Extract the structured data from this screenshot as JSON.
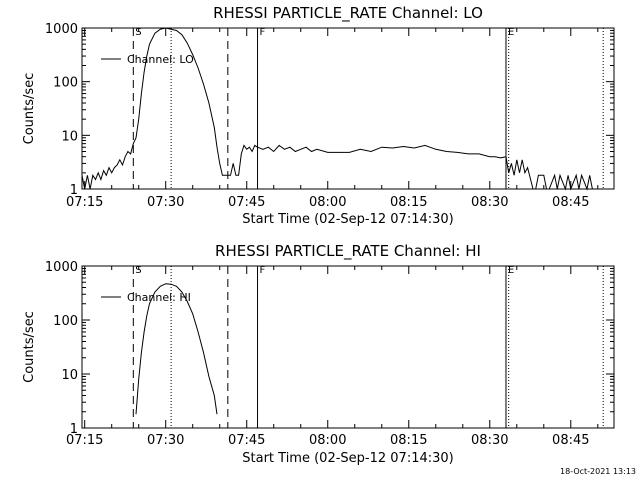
{
  "chart_data": [
    {
      "type": "line",
      "title": "RHESSI PARTICLE_RATE Channel: LO",
      "xlabel": "Start Time (02-Sep-12 07:14:30)",
      "ylabel": "Counts/sec",
      "yscale": "log",
      "xlim": [
        "07:14:30",
        "08:53:00"
      ],
      "ylim": [
        1,
        1000
      ],
      "x_ticks": [
        "07:15",
        "07:30",
        "07:45",
        "08:00",
        "08:15",
        "08:30",
        "08:45"
      ],
      "y_ticks": [
        "1",
        "10",
        "100",
        "1000"
      ],
      "legend": {
        "position": "top-left",
        "entries": [
          "Channel: LO"
        ]
      },
      "markers": [
        {
          "label": "S",
          "time": "07:24:00",
          "style": "dashed"
        },
        {
          "label": "",
          "time": "07:41:30",
          "style": "dashed"
        },
        {
          "label": "",
          "time": "07:31:00",
          "style": "dotted"
        },
        {
          "label": "F",
          "time": "07:47:00",
          "style": "solid"
        },
        {
          "label": "E",
          "time": "08:33:00",
          "style": "solid"
        },
        {
          "label": "",
          "time": "08:33:30",
          "style": "dotted"
        },
        {
          "label": "",
          "time": "08:51:00",
          "style": "dotted"
        }
      ],
      "series": [
        {
          "name": "Channel: LO",
          "x": [
            "07:14:30",
            "07:15:00",
            "07:15:30",
            "07:16:00",
            "07:16:30",
            "07:17:00",
            "07:17:30",
            "07:18:00",
            "07:18:30",
            "07:19:00",
            "07:19:30",
            "07:20:00",
            "07:20:30",
            "07:21:00",
            "07:21:30",
            "07:22:00",
            "07:22:30",
            "07:23:00",
            "07:23:30",
            "07:24:00",
            "07:24:30",
            "07:25:00",
            "07:25:30",
            "07:26:00",
            "07:26:30",
            "07:27:00",
            "07:28:00",
            "07:29:00",
            "07:30:00",
            "07:31:00",
            "07:32:00",
            "07:33:00",
            "07:34:00",
            "07:35:00",
            "07:36:00",
            "07:37:00",
            "07:38:00",
            "07:39:00",
            "07:39:30",
            "07:40:00",
            "07:40:30",
            "07:41:00",
            "07:41:30",
            "07:42:00",
            "07:42:30",
            "07:43:00",
            "07:43:30",
            "07:44:00",
            "07:44:30",
            "07:45:00",
            "07:45:30",
            "07:46:00",
            "07:46:30",
            "07:47:00",
            "07:48:00",
            "07:49:00",
            "07:50:00",
            "07:51:00",
            "07:52:00",
            "07:53:00",
            "07:54:00",
            "07:55:00",
            "07:56:00",
            "07:57:00",
            "07:58:00",
            "08:00:00",
            "08:02:00",
            "08:04:00",
            "08:06:00",
            "08:08:00",
            "08:10:00",
            "08:12:00",
            "08:14:00",
            "08:16:00",
            "08:18:00",
            "08:20:00",
            "08:22:00",
            "08:24:00",
            "08:26:00",
            "08:28:00",
            "08:30:00",
            "08:31:00",
            "08:32:00",
            "08:33:00",
            "08:33:30",
            "08:34:00",
            "08:34:30",
            "08:35:00",
            "08:35:30",
            "08:36:00",
            "08:36:30",
            "08:37:00",
            "08:38:00",
            "08:38:30",
            "08:39:00",
            "08:40:00",
            "08:40:30",
            "08:41:00",
            "08:42:00",
            "08:42:30",
            "08:43:00",
            "08:44:00",
            "08:44:30",
            "08:45:00",
            "08:46:00",
            "08:46:30",
            "08:47:00",
            "08:48:00",
            "08:48:30",
            "08:49:00"
          ],
          "values": [
            1.8,
            1.0,
            1.8,
            1.0,
            1.8,
            1.5,
            2.0,
            1.5,
            2.2,
            1.8,
            2.5,
            2.0,
            2.5,
            2.8,
            3.5,
            2.8,
            4.0,
            5.0,
            4.5,
            7.0,
            9.0,
            20,
            60,
            150,
            300,
            500,
            800,
            950,
            1000,
            950,
            900,
            750,
            520,
            320,
            180,
            90,
            40,
            14,
            6,
            3.0,
            1.8,
            1.8,
            1.8,
            1.8,
            3.0,
            1.8,
            1.8,
            4.5,
            6.5,
            5.5,
            6.0,
            5.0,
            6.5,
            6.0,
            5.5,
            6.0,
            5.0,
            6.5,
            5.5,
            6.0,
            5.0,
            5.5,
            6.0,
            5.0,
            5.5,
            4.8,
            4.8,
            4.8,
            5.5,
            5.0,
            6.0,
            5.8,
            6.2,
            5.8,
            6.5,
            5.5,
            5.0,
            4.8,
            4.5,
            4.5,
            4.0,
            4.0,
            3.8,
            4.0,
            2.0,
            3.0,
            1.8,
            3.5,
            2.0,
            3.5,
            2.0,
            2.5,
            1.0,
            1.0,
            1.8,
            1.8,
            1.0,
            1.0,
            1.8,
            1.0,
            1.8,
            1.0,
            1.8,
            1.0,
            1.8,
            1.0,
            1.8,
            1.0,
            1.8,
            1.0
          ]
        }
      ]
    },
    {
      "type": "line",
      "title": "RHESSI PARTICLE_RATE Channel: HI",
      "xlabel": "Start Time (02-Sep-12 07:14:30)",
      "ylabel": "Counts/sec",
      "yscale": "log",
      "xlim": [
        "07:14:30",
        "08:53:00"
      ],
      "ylim": [
        1,
        1000
      ],
      "x_ticks": [
        "07:15",
        "07:30",
        "07:45",
        "08:00",
        "08:15",
        "08:30",
        "08:45"
      ],
      "y_ticks": [
        "1",
        "10",
        "100",
        "1000"
      ],
      "legend": {
        "position": "top-left",
        "entries": [
          "Channel: HI"
        ]
      },
      "markers": [
        {
          "label": "S",
          "time": "07:24:00",
          "style": "dashed"
        },
        {
          "label": "",
          "time": "07:41:30",
          "style": "dashed"
        },
        {
          "label": "",
          "time": "07:31:00",
          "style": "dotted"
        },
        {
          "label": "F",
          "time": "07:47:00",
          "style": "solid"
        },
        {
          "label": "E",
          "time": "08:33:00",
          "style": "solid"
        },
        {
          "label": "",
          "time": "08:33:30",
          "style": "dotted"
        },
        {
          "label": "",
          "time": "08:51:00",
          "style": "dotted"
        }
      ],
      "series": [
        {
          "name": "Channel: HI",
          "x": [
            "07:24:30",
            "07:25:00",
            "07:25:30",
            "07:26:00",
            "07:26:30",
            "07:27:00",
            "07:28:00",
            "07:29:00",
            "07:30:00",
            "07:31:00",
            "07:32:00",
            "07:33:00",
            "07:34:00",
            "07:35:00",
            "07:36:00",
            "07:37:00",
            "07:38:00",
            "07:39:00",
            "07:39:30"
          ],
          "values": [
            1.8,
            8,
            25,
            60,
            120,
            200,
            330,
            420,
            470,
            460,
            420,
            330,
            220,
            130,
            60,
            25,
            9,
            4,
            1.8
          ]
        }
      ]
    }
  ],
  "footer": {
    "timestamp": "18-Oct-2021 13:13"
  }
}
